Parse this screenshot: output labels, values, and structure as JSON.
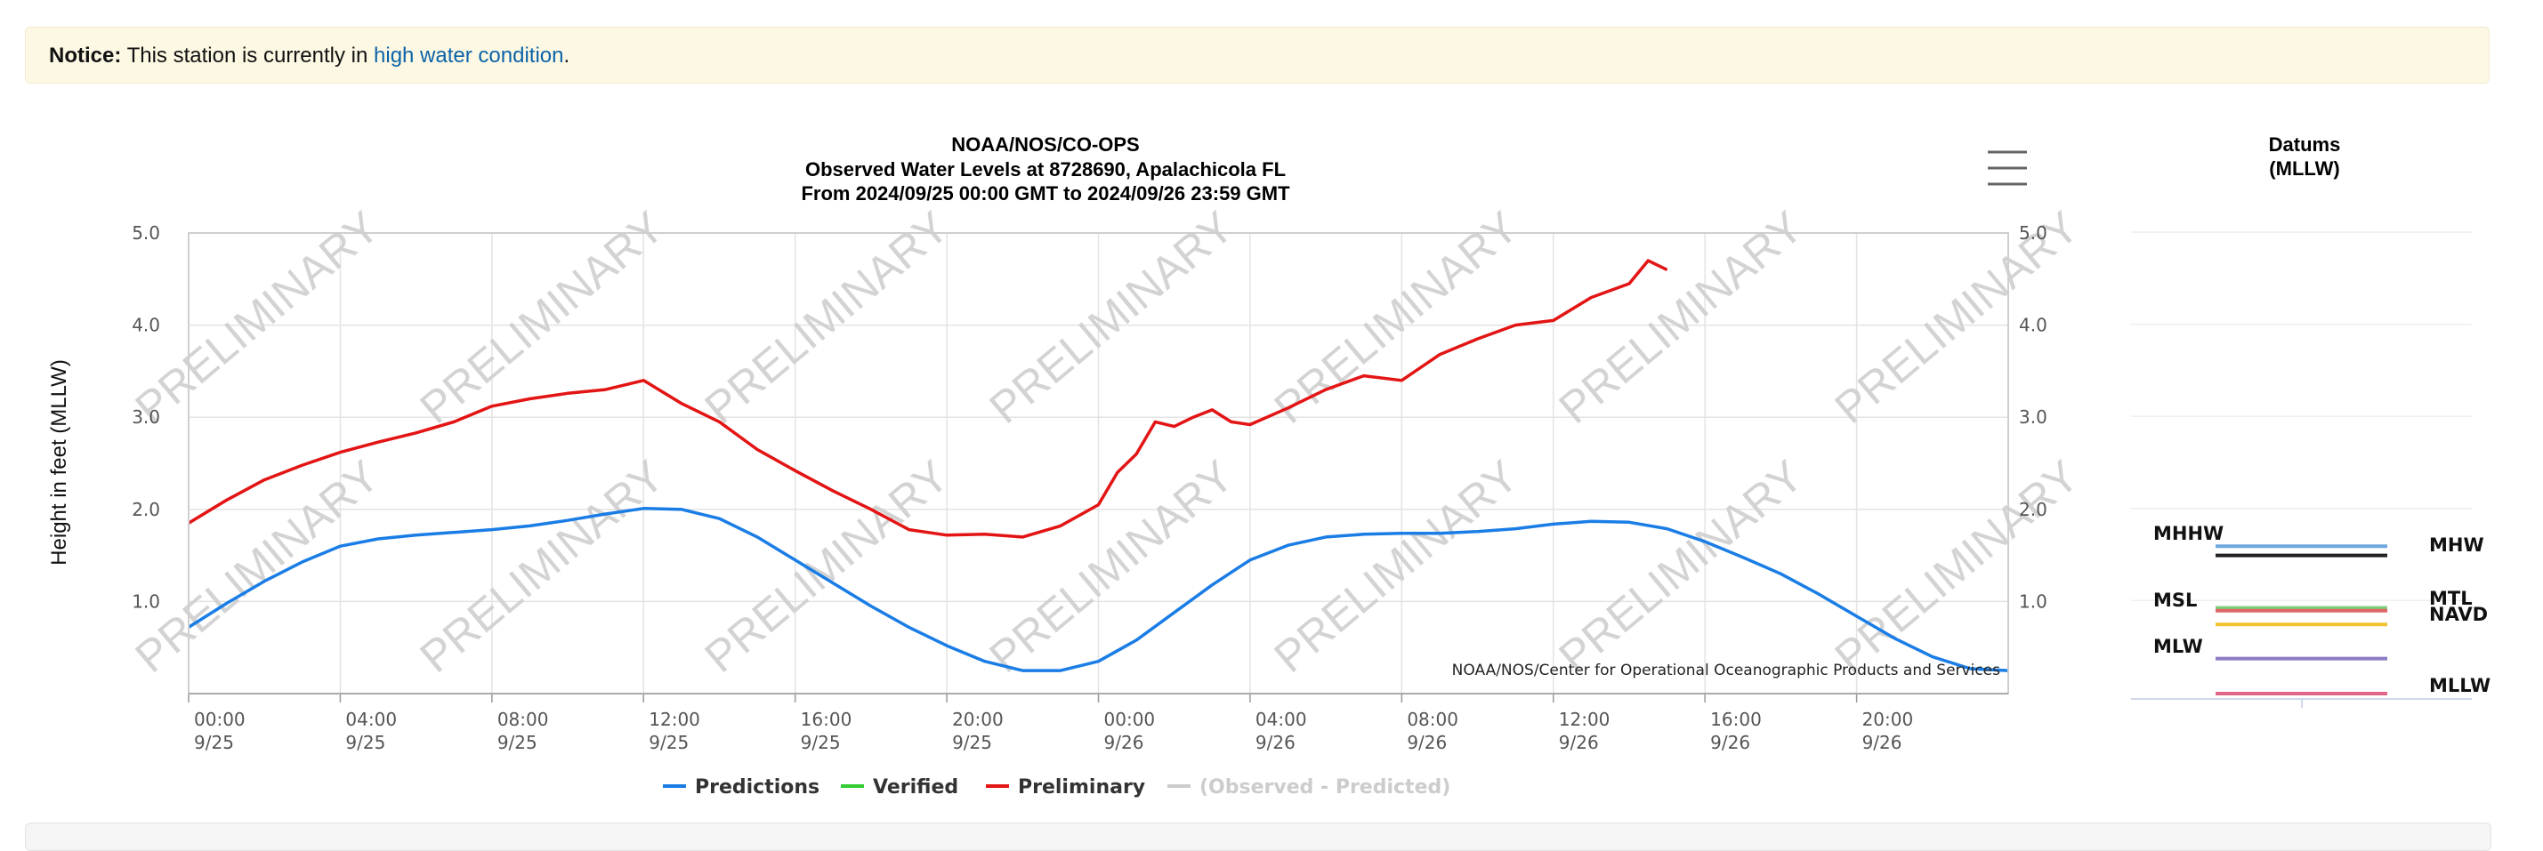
{
  "notice": {
    "label": "Notice:",
    "text": "This station is currently in",
    "link": "high water condition",
    "end": "."
  },
  "chart_data": {
    "type": "line",
    "title": "NOAA/NOS/CO-OPS",
    "subtitle1": "Observed Water Levels at 8728690, Apalachicola FL",
    "subtitle2": "From 2024/09/25 00:00 GMT to 2024/09/26 23:59 GMT",
    "ylabel": "Height in feet (MLLW)",
    "ylim": [
      0,
      5
    ],
    "yticks": [
      "1.0",
      "2.0",
      "3.0",
      "4.0",
      "5.0"
    ],
    "ytick_values": [
      1,
      2,
      3,
      4,
      5
    ],
    "xlim_hours": [
      0,
      48
    ],
    "xticks": [
      {
        "time": "00:00",
        "date": "9/25",
        "h": 0
      },
      {
        "time": "04:00",
        "date": "9/25",
        "h": 4
      },
      {
        "time": "08:00",
        "date": "9/25",
        "h": 8
      },
      {
        "time": "12:00",
        "date": "9/25",
        "h": 12
      },
      {
        "time": "16:00",
        "date": "9/25",
        "h": 16
      },
      {
        "time": "20:00",
        "date": "9/25",
        "h": 20
      },
      {
        "time": "00:00",
        "date": "9/26",
        "h": 24
      },
      {
        "time": "04:00",
        "date": "9/26",
        "h": 28
      },
      {
        "time": "08:00",
        "date": "9/26",
        "h": 32
      },
      {
        "time": "12:00",
        "date": "9/26",
        "h": 36
      },
      {
        "time": "16:00",
        "date": "9/26",
        "h": 40
      },
      {
        "time": "20:00",
        "date": "9/26",
        "h": 44
      }
    ],
    "watermark": "PRELIMINARY",
    "credit": "NOAA/NOS/Center for Operational Oceanographic Products and Services",
    "series": [
      {
        "name": "Predictions",
        "color": "#1a7de6",
        "x": [
          0,
          1,
          2,
          3,
          4,
          5,
          6,
          7,
          8,
          9,
          10,
          11,
          12,
          13,
          14,
          15,
          16,
          17,
          18,
          19,
          20,
          21,
          22,
          23,
          24,
          25,
          26,
          27,
          28,
          29,
          30,
          31,
          32,
          33,
          34,
          35,
          36,
          37,
          38,
          39,
          40,
          41,
          42,
          43,
          44,
          45,
          46,
          47,
          48
        ],
        "values": [
          0.72,
          0.98,
          1.22,
          1.43,
          1.6,
          1.68,
          1.72,
          1.75,
          1.78,
          1.82,
          1.88,
          1.95,
          2.01,
          2.0,
          1.9,
          1.7,
          1.45,
          1.2,
          0.95,
          0.72,
          0.52,
          0.35,
          0.25,
          0.25,
          0.35,
          0.58,
          0.88,
          1.18,
          1.45,
          1.61,
          1.7,
          1.73,
          1.74,
          1.74,
          1.76,
          1.79,
          1.84,
          1.87,
          1.86,
          1.79,
          1.65,
          1.48,
          1.3,
          1.08,
          0.84,
          0.6,
          0.4,
          0.27,
          0.25
        ]
      },
      {
        "name": "Verified",
        "color": "#33cc33",
        "x": [],
        "values": []
      },
      {
        "name": "Preliminary",
        "color": "#e31414",
        "x": [
          0,
          1,
          2,
          3,
          4,
          5,
          6,
          7,
          8,
          9,
          10,
          11,
          12,
          13,
          14,
          15,
          16,
          17,
          18,
          19,
          20,
          21,
          22,
          23,
          24,
          24.5,
          25,
          25.5,
          26,
          26.5,
          27,
          27.5,
          28,
          29,
          30,
          31,
          32,
          33,
          34,
          35,
          36,
          37,
          38,
          38.5,
          39
        ],
        "values": [
          1.85,
          2.1,
          2.32,
          2.48,
          2.62,
          2.73,
          2.83,
          2.95,
          3.12,
          3.2,
          3.26,
          3.3,
          3.4,
          3.15,
          2.95,
          2.65,
          2.42,
          2.2,
          2.0,
          1.78,
          1.72,
          1.73,
          1.7,
          1.82,
          2.05,
          2.4,
          2.6,
          2.95,
          2.9,
          3.0,
          3.08,
          2.95,
          2.92,
          3.1,
          3.3,
          3.45,
          3.4,
          3.68,
          3.85,
          4.0,
          4.05,
          4.3,
          4.45,
          4.7,
          4.6
        ]
      },
      {
        "name": "(Observed - Predicted)",
        "color": "#cccccc",
        "x": [],
        "values": []
      }
    ],
    "datums": {
      "title1": "Datums",
      "title2": "(MLLW)",
      "items": [
        {
          "name": "MHHW",
          "value": 1.6,
          "color": "#6fa8dc",
          "side": "left"
        },
        {
          "name": "MHW",
          "value": 1.5,
          "color": "#222222",
          "side": "right"
        },
        {
          "name": "MSL",
          "value": 0.93,
          "color": "#7ccd7c",
          "side": "left"
        },
        {
          "name": "MTL",
          "value": 0.9,
          "color": "#e06666",
          "side": "right"
        },
        {
          "name": "NAVD",
          "value": 0.75,
          "color": "#f1c232",
          "side": "right"
        },
        {
          "name": "MLW",
          "value": 0.38,
          "color": "#8e7cc3",
          "side": "left"
        },
        {
          "name": "MLLW",
          "value": 0.0,
          "color": "#e06688",
          "side": "right"
        }
      ]
    }
  }
}
